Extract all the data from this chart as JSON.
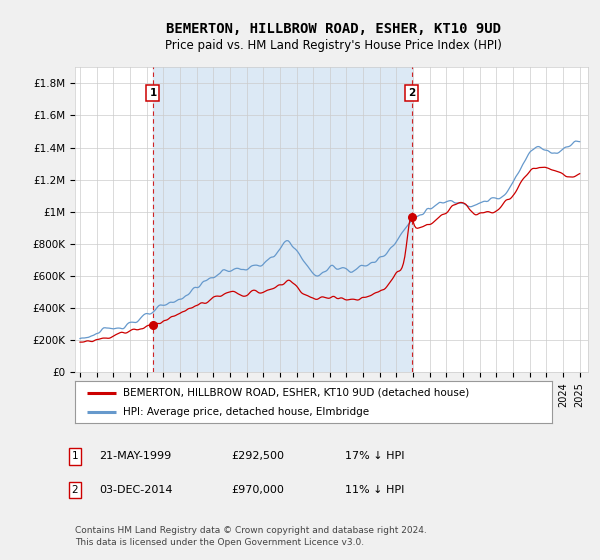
{
  "title": "BEMERTON, HILLBROW ROAD, ESHER, KT10 9UD",
  "subtitle": "Price paid vs. HM Land Registry's House Price Index (HPI)",
  "legend_line1": "BEMERTON, HILLBROW ROAD, ESHER, KT10 9UD (detached house)",
  "legend_line2": "HPI: Average price, detached house, Elmbridge",
  "annotation1_date": "21-MAY-1999",
  "annotation1_price": "£292,500",
  "annotation1_hpi": "17% ↓ HPI",
  "annotation2_date": "03-DEC-2014",
  "annotation2_price": "£970,000",
  "annotation2_hpi": "11% ↓ HPI",
  "footnote1": "Contains HM Land Registry data © Crown copyright and database right 2024.",
  "footnote2": "This data is licensed under the Open Government Licence v3.0.",
  "red_color": "#cc0000",
  "blue_color": "#6699cc",
  "blue_fill": "#dce9f5",
  "background_color": "#f0f0f0",
  "plot_bg_color": "#ffffff",
  "ylim": [
    0,
    1900000
  ],
  "yticks": [
    0,
    200000,
    400000,
    600000,
    800000,
    1000000,
    1200000,
    1400000,
    1600000,
    1800000
  ],
  "ytick_labels": [
    "£0",
    "£200K",
    "£400K",
    "£600K",
    "£800K",
    "£1M",
    "£1.2M",
    "£1.4M",
    "£1.6M",
    "£1.8M"
  ],
  "sale1_x": 1999.38,
  "sale1_y": 292500,
  "sale2_x": 2014.92,
  "sale2_y": 970000,
  "vline1_x": 1999.38,
  "vline2_x": 2014.92,
  "xmin": 1994.7,
  "xmax": 2025.5
}
